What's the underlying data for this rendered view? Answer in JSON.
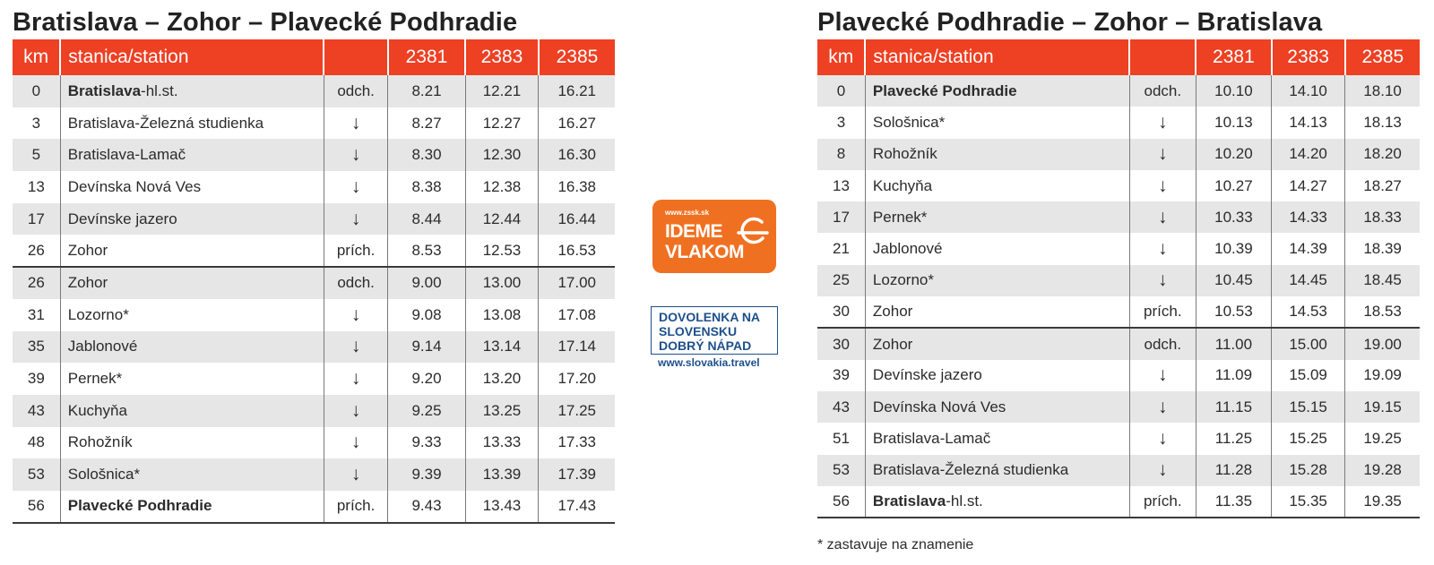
{
  "left": {
    "title": "Bratislava – Zohor – Plavecké Podhradie",
    "headers": [
      "km",
      "stanica/station",
      "",
      "2381",
      "2383",
      "2385"
    ],
    "rows": [
      {
        "km": "0",
        "station": "Bratislava",
        "suffix": "-hl.st.",
        "type": "odch.",
        "t": [
          "8.21",
          "12.21",
          "16.21"
        ]
      },
      {
        "km": "3",
        "station": "Bratislava-Železná studienka",
        "type": "↓",
        "t": [
          "8.27",
          "12.27",
          "16.27"
        ]
      },
      {
        "km": "5",
        "station": "Bratislava-Lamač",
        "type": "↓",
        "t": [
          "8.30",
          "12.30",
          "16.30"
        ]
      },
      {
        "km": "13",
        "station": "Devínska Nová Ves",
        "type": "↓",
        "t": [
          "8.38",
          "12.38",
          "16.38"
        ]
      },
      {
        "km": "17",
        "station": "Devínske jazero",
        "type": "↓",
        "t": [
          "8.44",
          "12.44",
          "16.44"
        ]
      },
      {
        "km": "26",
        "station": "Zohor",
        "type": "prích.",
        "t": [
          "8.53",
          "12.53",
          "16.53"
        ]
      },
      {
        "km": "26",
        "station": "Zohor",
        "type": "odch.",
        "t": [
          "9.00",
          "13.00",
          "17.00"
        ]
      },
      {
        "km": "31",
        "station": "Lozorno*",
        "type": "↓",
        "t": [
          "9.08",
          "13.08",
          "17.08"
        ]
      },
      {
        "km": "35",
        "station": "Jablonové",
        "type": "↓",
        "t": [
          "9.14",
          "13.14",
          "17.14"
        ]
      },
      {
        "km": "39",
        "station": "Pernek*",
        "type": "↓",
        "t": [
          "9.20",
          "13.20",
          "17.20"
        ]
      },
      {
        "km": "43",
        "station": "Kuchyňa",
        "type": "↓",
        "t": [
          "9.25",
          "13.25",
          "17.25"
        ]
      },
      {
        "km": "48",
        "station": "Rohožník",
        "type": "↓",
        "t": [
          "9.33",
          "13.33",
          "17.33"
        ]
      },
      {
        "km": "53",
        "station": "Sološnica*",
        "type": "↓",
        "t": [
          "9.39",
          "13.39",
          "17.39"
        ]
      },
      {
        "km": "56",
        "station": "Plavecké Podhradie",
        "bold_full": true,
        "type": "prích.",
        "t": [
          "9.43",
          "13.43",
          "17.43"
        ]
      }
    ]
  },
  "right": {
    "title": "Plavecké Podhradie – Zohor – Bratislava",
    "headers": [
      "km",
      "stanica/station",
      "",
      "2381",
      "2383",
      "2385"
    ],
    "rows": [
      {
        "km": "0",
        "station": "Plavecké Podhradie",
        "bold_full": true,
        "type": "odch.",
        "t": [
          "10.10",
          "14.10",
          "18.10"
        ]
      },
      {
        "km": "3",
        "station": "Sološnica*",
        "type": "↓",
        "t": [
          "10.13",
          "14.13",
          "18.13"
        ]
      },
      {
        "km": "8",
        "station": "Rohožník",
        "type": "↓",
        "t": [
          "10.20",
          "14.20",
          "18.20"
        ]
      },
      {
        "km": "13",
        "station": "Kuchyňa",
        "type": "↓",
        "t": [
          "10.27",
          "14.27",
          "18.27"
        ]
      },
      {
        "km": "17",
        "station": "Pernek*",
        "type": "↓",
        "t": [
          "10.33",
          "14.33",
          "18.33"
        ]
      },
      {
        "km": "21",
        "station": "Jablonové",
        "type": "↓",
        "t": [
          "10.39",
          "14.39",
          "18.39"
        ]
      },
      {
        "km": "25",
        "station": "Lozorno*",
        "type": "↓",
        "t": [
          "10.45",
          "14.45",
          "18.45"
        ]
      },
      {
        "km": "30",
        "station": "Zohor",
        "type": "prích.",
        "t": [
          "10.53",
          "14.53",
          "18.53"
        ]
      },
      {
        "km": "30",
        "station": "Zohor",
        "type": "odch.",
        "t": [
          "11.00",
          "15.00",
          "19.00"
        ]
      },
      {
        "km": "39",
        "station": "Devínske jazero",
        "type": "↓",
        "t": [
          "11.09",
          "15.09",
          "19.09"
        ]
      },
      {
        "km": "43",
        "station": "Devínska Nová Ves",
        "type": "↓",
        "t": [
          "11.15",
          "15.15",
          "19.15"
        ]
      },
      {
        "km": "51",
        "station": "Bratislava-Lamač",
        "type": "↓",
        "t": [
          "11.25",
          "15.25",
          "19.25"
        ]
      },
      {
        "km": "53",
        "station": "Bratislava-Železná studienka",
        "type": "↓",
        "t": [
          "11.28",
          "15.28",
          "19.28"
        ]
      },
      {
        "km": "56",
        "station": "Bratislava",
        "suffix": "-hl.st.",
        "type": "prích.",
        "t": [
          "11.35",
          "15.35",
          "19.35"
        ]
      }
    ],
    "footnote": "* zastavuje na znamenie"
  },
  "logos": {
    "zssk": {
      "url": "www.zssk.sk",
      "line1": "IDEME",
      "line2": "VLAKOM",
      "color": "#f07022"
    },
    "slovakia": {
      "lines": [
        "DOVOLENKA NA",
        "SLOVENSKU",
        "DOBRÝ NÁPAD"
      ],
      "url": "www.slovakia.travel",
      "color": "#1d4f8c"
    }
  },
  "colors": {
    "header_bg": "#ee4023",
    "stripe": "#e6e6e6"
  }
}
